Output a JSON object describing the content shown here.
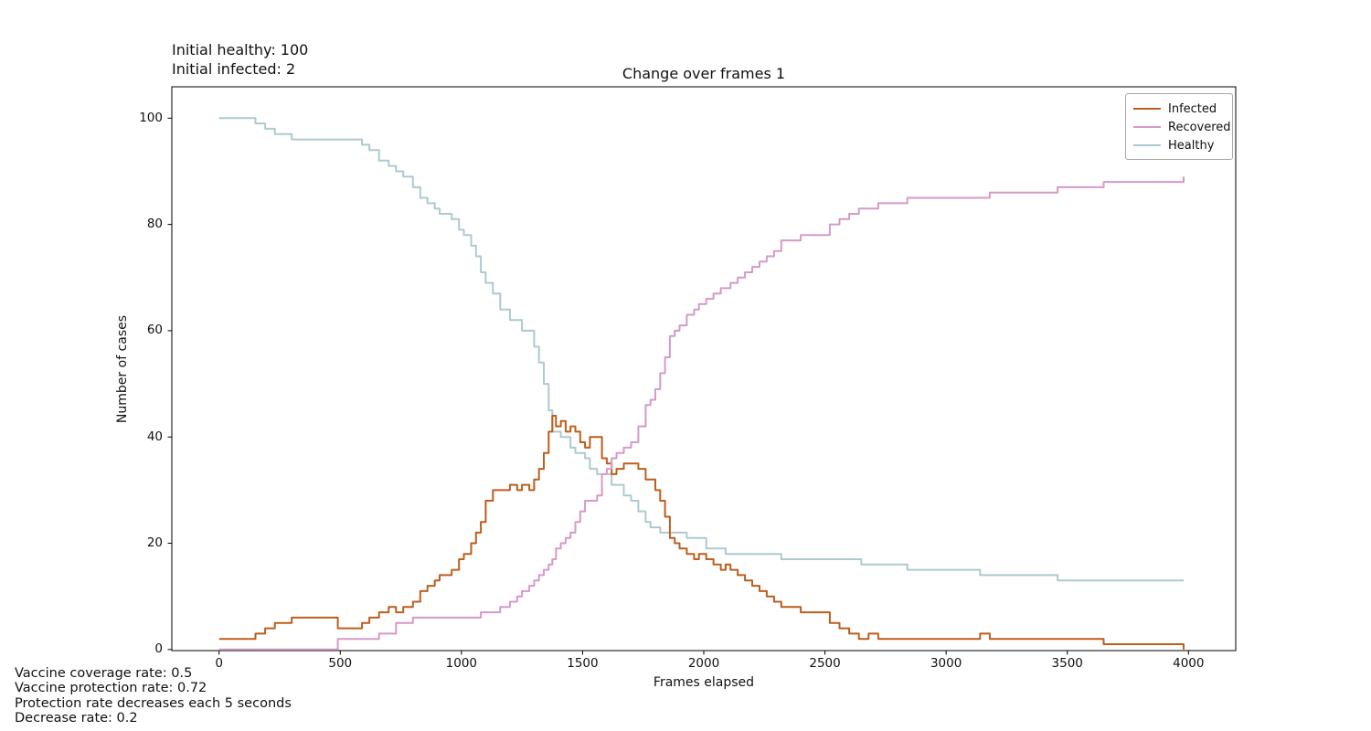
{
  "annotations": {
    "top_left_line1": "Initial healthy: 100",
    "top_left_line2": "Initial infected: 2",
    "bottom_left": [
      "Vaccine coverage rate: 0.5",
      "Vaccine protection rate: 0.72",
      "Protection rate decreases each 5 seconds",
      "Decrease rate: 0.2"
    ]
  },
  "chart_data": {
    "type": "line",
    "title": "Change over frames 1",
    "xlabel": "Frames elapsed",
    "ylabel": "Number of cases",
    "x_ticks": [
      0,
      500,
      1000,
      1500,
      2000,
      2500,
      3000,
      3500,
      4000
    ],
    "y_ticks": [
      0,
      20,
      40,
      60,
      80,
      100
    ],
    "xlim": [
      -195,
      4195
    ],
    "ylim": [
      -0.2,
      105.9
    ],
    "grid": false,
    "line_style": "step-after",
    "axis_color": "#000000",
    "legend": {
      "position": "upper right",
      "entries": [
        {
          "label": "Infected",
          "color": "#bc5e1d"
        },
        {
          "label": "Recovered",
          "color": "#d59ac7"
        },
        {
          "label": "Healthy",
          "color": "#aec9cf"
        }
      ]
    },
    "series": [
      {
        "name": "Healthy",
        "color": "#aec9cf",
        "points": [
          [
            0,
            100
          ],
          [
            150,
            99
          ],
          [
            190,
            98
          ],
          [
            230,
            97
          ],
          [
            300,
            96
          ],
          [
            590,
            95
          ],
          [
            620,
            94
          ],
          [
            660,
            92
          ],
          [
            700,
            91
          ],
          [
            730,
            90
          ],
          [
            760,
            89
          ],
          [
            800,
            87
          ],
          [
            830,
            85
          ],
          [
            860,
            84
          ],
          [
            890,
            83
          ],
          [
            910,
            82
          ],
          [
            960,
            81
          ],
          [
            990,
            79
          ],
          [
            1010,
            78
          ],
          [
            1040,
            76
          ],
          [
            1060,
            74
          ],
          [
            1080,
            71
          ],
          [
            1100,
            69
          ],
          [
            1130,
            67
          ],
          [
            1160,
            64
          ],
          [
            1200,
            62
          ],
          [
            1250,
            60
          ],
          [
            1300,
            57
          ],
          [
            1320,
            54
          ],
          [
            1340,
            50
          ],
          [
            1360,
            45
          ],
          [
            1375,
            41
          ],
          [
            1410,
            40
          ],
          [
            1450,
            38
          ],
          [
            1470,
            37
          ],
          [
            1510,
            36
          ],
          [
            1530,
            34
          ],
          [
            1560,
            33
          ],
          [
            1620,
            31
          ],
          [
            1670,
            29
          ],
          [
            1700,
            28
          ],
          [
            1730,
            26
          ],
          [
            1760,
            24
          ],
          [
            1780,
            23
          ],
          [
            1820,
            22
          ],
          [
            1930,
            21
          ],
          [
            2010,
            19
          ],
          [
            2090,
            18
          ],
          [
            2320,
            17
          ],
          [
            2650,
            16
          ],
          [
            2840,
            15
          ],
          [
            3140,
            14
          ],
          [
            3460,
            13
          ],
          [
            3980,
            13
          ]
        ]
      },
      {
        "name": "Infected",
        "color": "#bc5e1d",
        "points": [
          [
            0,
            2
          ],
          [
            150,
            3
          ],
          [
            190,
            4
          ],
          [
            230,
            5
          ],
          [
            300,
            6
          ],
          [
            490,
            4
          ],
          [
            590,
            5
          ],
          [
            620,
            6
          ],
          [
            660,
            7
          ],
          [
            700,
            8
          ],
          [
            730,
            7
          ],
          [
            760,
            8
          ],
          [
            800,
            9
          ],
          [
            830,
            11
          ],
          [
            860,
            12
          ],
          [
            890,
            13
          ],
          [
            910,
            14
          ],
          [
            960,
            15
          ],
          [
            990,
            17
          ],
          [
            1010,
            18
          ],
          [
            1040,
            20
          ],
          [
            1060,
            22
          ],
          [
            1080,
            24
          ],
          [
            1100,
            28
          ],
          [
            1130,
            30
          ],
          [
            1200,
            31
          ],
          [
            1230,
            30
          ],
          [
            1250,
            31
          ],
          [
            1280,
            30
          ],
          [
            1300,
            32
          ],
          [
            1320,
            34
          ],
          [
            1340,
            37
          ],
          [
            1360,
            41
          ],
          [
            1375,
            44
          ],
          [
            1390,
            42
          ],
          [
            1410,
            43
          ],
          [
            1430,
            41
          ],
          [
            1450,
            42
          ],
          [
            1470,
            41
          ],
          [
            1490,
            39
          ],
          [
            1510,
            38
          ],
          [
            1530,
            40
          ],
          [
            1580,
            36
          ],
          [
            1600,
            35
          ],
          [
            1620,
            33
          ],
          [
            1640,
            34
          ],
          [
            1670,
            35
          ],
          [
            1730,
            34
          ],
          [
            1760,
            32
          ],
          [
            1800,
            30
          ],
          [
            1820,
            28
          ],
          [
            1840,
            25
          ],
          [
            1860,
            21
          ],
          [
            1880,
            20
          ],
          [
            1900,
            19
          ],
          [
            1930,
            18
          ],
          [
            1960,
            17
          ],
          [
            1980,
            18
          ],
          [
            2010,
            17
          ],
          [
            2040,
            16
          ],
          [
            2070,
            15
          ],
          [
            2090,
            16
          ],
          [
            2110,
            15
          ],
          [
            2140,
            14
          ],
          [
            2170,
            13
          ],
          [
            2200,
            12
          ],
          [
            2230,
            11
          ],
          [
            2260,
            10
          ],
          [
            2290,
            9
          ],
          [
            2320,
            8
          ],
          [
            2400,
            7
          ],
          [
            2520,
            5
          ],
          [
            2560,
            4
          ],
          [
            2600,
            3
          ],
          [
            2640,
            2
          ],
          [
            2680,
            3
          ],
          [
            2720,
            2
          ],
          [
            3140,
            3
          ],
          [
            3180,
            2
          ],
          [
            3650,
            1
          ],
          [
            3980,
            0
          ]
        ]
      },
      {
        "name": "Recovered",
        "color": "#d59ac7",
        "points": [
          [
            0,
            0
          ],
          [
            490,
            2
          ],
          [
            660,
            3
          ],
          [
            730,
            5
          ],
          [
            800,
            6
          ],
          [
            1080,
            7
          ],
          [
            1160,
            8
          ],
          [
            1200,
            9
          ],
          [
            1230,
            10
          ],
          [
            1250,
            11
          ],
          [
            1280,
            12
          ],
          [
            1300,
            13
          ],
          [
            1320,
            14
          ],
          [
            1340,
            15
          ],
          [
            1360,
            16
          ],
          [
            1375,
            17
          ],
          [
            1390,
            19
          ],
          [
            1410,
            20
          ],
          [
            1430,
            21
          ],
          [
            1450,
            22
          ],
          [
            1470,
            24
          ],
          [
            1490,
            26
          ],
          [
            1510,
            28
          ],
          [
            1560,
            29
          ],
          [
            1580,
            33
          ],
          [
            1600,
            34
          ],
          [
            1620,
            36
          ],
          [
            1640,
            37
          ],
          [
            1670,
            38
          ],
          [
            1700,
            39
          ],
          [
            1730,
            42
          ],
          [
            1760,
            46
          ],
          [
            1780,
            47
          ],
          [
            1800,
            49
          ],
          [
            1820,
            52
          ],
          [
            1840,
            55
          ],
          [
            1860,
            59
          ],
          [
            1880,
            60
          ],
          [
            1900,
            61
          ],
          [
            1930,
            63
          ],
          [
            1960,
            64
          ],
          [
            1980,
            65
          ],
          [
            2010,
            66
          ],
          [
            2040,
            67
          ],
          [
            2070,
            68
          ],
          [
            2110,
            69
          ],
          [
            2140,
            70
          ],
          [
            2170,
            71
          ],
          [
            2200,
            72
          ],
          [
            2230,
            73
          ],
          [
            2260,
            74
          ],
          [
            2290,
            75
          ],
          [
            2320,
            77
          ],
          [
            2400,
            78
          ],
          [
            2520,
            80
          ],
          [
            2560,
            81
          ],
          [
            2600,
            82
          ],
          [
            2640,
            83
          ],
          [
            2720,
            84
          ],
          [
            2840,
            85
          ],
          [
            3180,
            86
          ],
          [
            3460,
            87
          ],
          [
            3650,
            88
          ],
          [
            3980,
            89
          ]
        ]
      }
    ]
  }
}
